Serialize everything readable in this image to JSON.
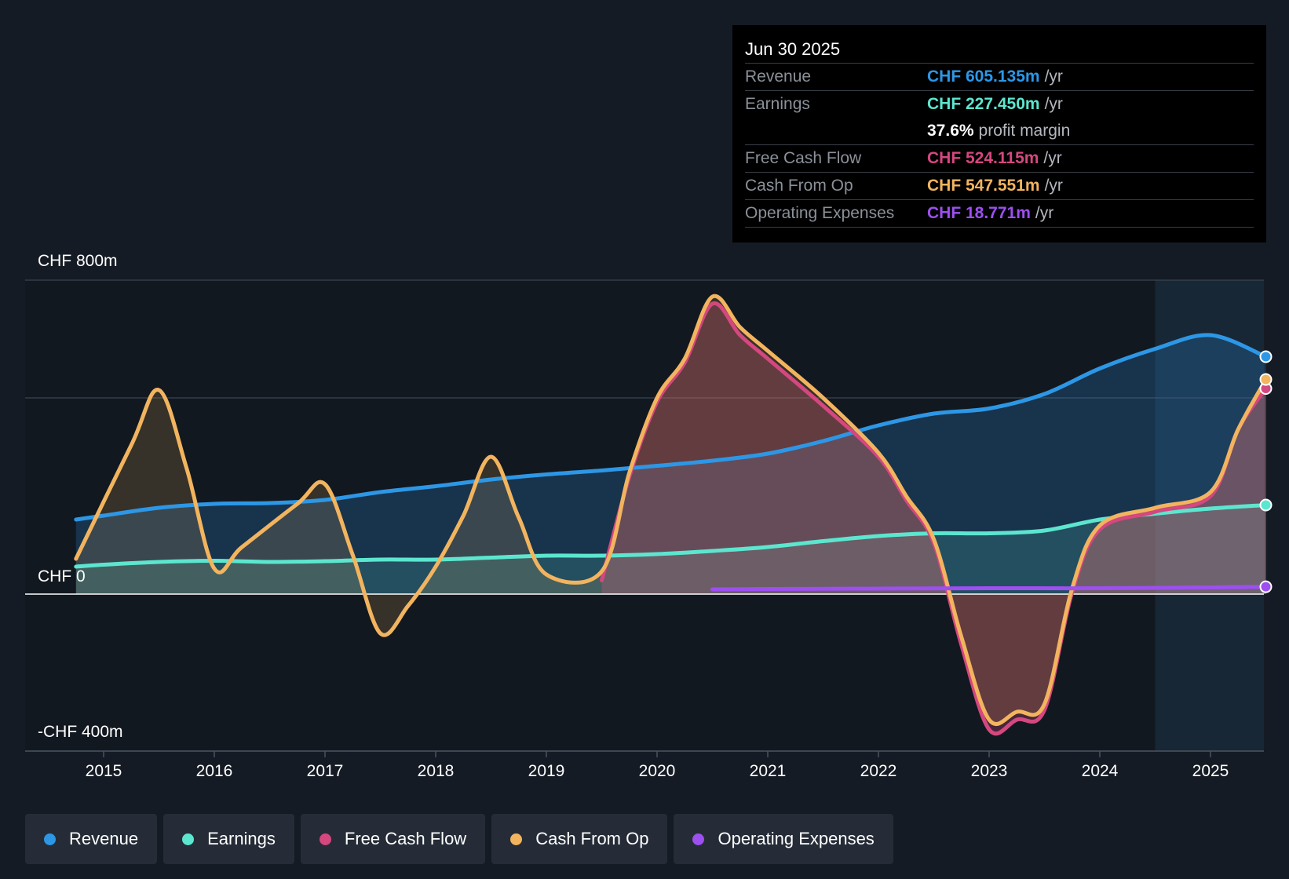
{
  "tooltip": {
    "date": "Jun 30 2025",
    "rows": [
      {
        "label": "Revenue",
        "value": "CHF 605.135m",
        "unit": "/yr",
        "color": "#2d97e6"
      },
      {
        "label": "Earnings",
        "value": "CHF 227.450m",
        "unit": "/yr",
        "color": "#5ce6cf"
      },
      {
        "label": "",
        "value": "37.6%",
        "unit": "profit margin",
        "color": "#ffffff"
      },
      {
        "label": "Free Cash Flow",
        "value": "CHF 524.115m",
        "unit": "/yr",
        "color": "#d4477f"
      },
      {
        "label": "Cash From Op",
        "value": "CHF 547.551m",
        "unit": "/yr",
        "color": "#f2b45e"
      },
      {
        "label": "Operating Expenses",
        "value": "CHF 18.771m",
        "unit": "/yr",
        "color": "#9d4ff0"
      }
    ]
  },
  "legend": [
    {
      "label": "Revenue",
      "color": "#2d97e6"
    },
    {
      "label": "Earnings",
      "color": "#5ce6cf"
    },
    {
      "label": "Free Cash Flow",
      "color": "#d4477f"
    },
    {
      "label": "Cash From Op",
      "color": "#f2b45e"
    },
    {
      "label": "Operating Expenses",
      "color": "#9d4ff0"
    }
  ],
  "chart_data": {
    "type": "area",
    "title": "",
    "xlabel": "",
    "ylabel": "",
    "y_tick_labels": [
      "CHF 800m",
      "CHF 0",
      "-CHF 400m"
    ],
    "y_ticks": [
      800,
      0,
      -400
    ],
    "ylim": [
      -400,
      800
    ],
    "xlim": [
      2014.3,
      2025.5
    ],
    "x_ticks": [
      2015,
      2016,
      2017,
      2018,
      2019,
      2020,
      2021,
      2022,
      2023,
      2024,
      2025
    ],
    "x_tick_labels": [
      "2015",
      "2016",
      "2017",
      "2018",
      "2019",
      "2020",
      "2021",
      "2022",
      "2023",
      "2024",
      "2025"
    ],
    "forecast_start": 2024.5,
    "series": [
      {
        "name": "Revenue",
        "color": "#2d97e6",
        "x": [
          2014.75,
          2015.0,
          2015.5,
          2016.0,
          2016.5,
          2017.0,
          2017.5,
          2018.0,
          2018.5,
          2019.0,
          2019.5,
          2020.0,
          2020.5,
          2021.0,
          2021.5,
          2022.0,
          2022.5,
          2023.0,
          2023.5,
          2024.0,
          2024.5,
          2025.0,
          2025.5
        ],
        "values": [
          190,
          200,
          220,
          230,
          232,
          240,
          260,
          275,
          292,
          305,
          315,
          327,
          340,
          358,
          390,
          430,
          460,
          473,
          510,
          575,
          625,
          660,
          605
        ]
      },
      {
        "name": "Earnings",
        "color": "#5ce6cf",
        "x": [
          2014.75,
          2015.0,
          2015.5,
          2016.0,
          2016.5,
          2017.0,
          2017.5,
          2018.0,
          2018.5,
          2019.0,
          2019.5,
          2020.0,
          2020.5,
          2021.0,
          2021.5,
          2022.0,
          2022.5,
          2023.0,
          2023.5,
          2024.0,
          2024.5,
          2025.0,
          2025.5
        ],
        "values": [
          70,
          75,
          82,
          85,
          82,
          84,
          88,
          88,
          93,
          98,
          98,
          102,
          110,
          120,
          135,
          148,
          155,
          155,
          162,
          190,
          205,
          218,
          227
        ]
      },
      {
        "name": "Free Cash Flow",
        "color": "#d4477f",
        "x": [
          2019.5,
          2019.75,
          2020.0,
          2020.25,
          2020.5,
          2020.75,
          2021.0,
          2021.5,
          2022.0,
          2022.25,
          2022.5,
          2022.75,
          2023.0,
          2023.25,
          2023.5,
          2023.75,
          2024.0,
          2024.5,
          2025.0,
          2025.25,
          2025.5
        ],
        "values": [
          35,
          300,
          490,
          590,
          740,
          660,
          600,
          480,
          350,
          240,
          130,
          -130,
          -345,
          -320,
          -295,
          5,
          165,
          210,
          250,
          420,
          524
        ]
      },
      {
        "name": "Cash From Op",
        "color": "#f2b45e",
        "x": [
          2014.75,
          2015.25,
          2015.5,
          2015.75,
          2016.0,
          2016.25,
          2016.75,
          2017.0,
          2017.25,
          2017.5,
          2017.75,
          2018.0,
          2018.25,
          2018.5,
          2018.75,
          2019.0,
          2019.5,
          2019.75,
          2020.0,
          2020.25,
          2020.5,
          2020.75,
          2021.0,
          2021.5,
          2022.0,
          2022.25,
          2022.5,
          2022.75,
          2023.0,
          2023.25,
          2023.5,
          2023.75,
          2024.0,
          2024.5,
          2025.0,
          2025.25,
          2025.5
        ],
        "values": [
          90,
          380,
          520,
          320,
          65,
          120,
          230,
          280,
          100,
          -100,
          -30,
          70,
          200,
          350,
          195,
          50,
          58,
          310,
          500,
          600,
          758,
          680,
          620,
          500,
          360,
          250,
          140,
          -110,
          -320,
          -300,
          -280,
          15,
          175,
          220,
          260,
          420,
          547
        ]
      },
      {
        "name": "Operating Expenses",
        "color": "#9d4ff0",
        "x": [
          2020.5,
          2021.0,
          2022.0,
          2023.0,
          2024.0,
          2025.0,
          2025.5
        ],
        "values": [
          12,
          13,
          14,
          15,
          15,
          17,
          18.771
        ]
      }
    ]
  }
}
